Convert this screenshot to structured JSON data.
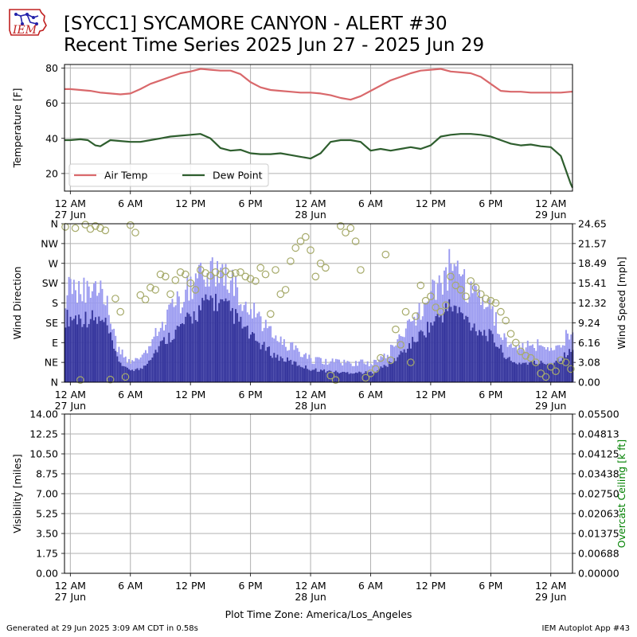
{
  "page": {
    "title": "[SYCC1] SYCAMORE CANYON - ALERT #30",
    "subtitle": "Recent Time Series 2025 Jun 27 - 2025 Jun 29",
    "logo_text": "IEM",
    "footer_left": "Generated at 29 Jun 2025 3:09 AM CDT in 0.58s",
    "footer_right": "IEM Autoplot App #43",
    "timezone_label": "Plot Time Zone: America/Los_Angeles"
  },
  "colors": {
    "air_temp": "#d9686b",
    "dew_point": "#2e5e2e",
    "wind_speed": "#32329a",
    "wind_gust": "#9a9af0",
    "wind_dir": "#a6aa6a",
    "ceiling_label": "#008000",
    "grid": "#b0b0b0"
  },
  "chart_data": [
    {
      "type": "line",
      "ylabel": "Temperature [F]",
      "ylim": [
        10,
        82
      ],
      "yticks": [
        "20",
        "40",
        "60",
        "80"
      ],
      "xlim": [
        "2025-06-26 23:25",
        "2025-06-29 02:10"
      ],
      "xticks": [
        {
          "t": "2025-06-27 00:00",
          "label": [
            "12 AM",
            "27 Jun"
          ]
        },
        {
          "t": "2025-06-27 06:00",
          "label": [
            "6 AM"
          ]
        },
        {
          "t": "2025-06-27 12:00",
          "label": [
            "12 PM"
          ]
        },
        {
          "t": "2025-06-27 18:00",
          "label": [
            "6 PM"
          ]
        },
        {
          "t": "2025-06-28 00:00",
          "label": [
            "12 AM",
            "28 Jun"
          ]
        },
        {
          "t": "2025-06-28 06:00",
          "label": [
            "6 AM"
          ]
        },
        {
          "t": "2025-06-28 12:00",
          "label": [
            "12 PM"
          ]
        },
        {
          "t": "2025-06-28 18:00",
          "label": [
            "6 PM"
          ]
        },
        {
          "t": "2025-06-29 00:00",
          "label": [
            "12 AM",
            "29 Jun"
          ]
        }
      ],
      "grid": true,
      "legend": "lower-left",
      "series": [
        {
          "name": "Air Temp",
          "x": [
            "2025-06-26 23:25",
            "2025-06-27 00:00",
            "2025-06-27 01:00",
            "2025-06-27 02:00",
            "2025-06-27 03:00",
            "2025-06-27 04:00",
            "2025-06-27 05:00",
            "2025-06-27 06:00",
            "2025-06-27 07:00",
            "2025-06-27 08:00",
            "2025-06-27 09:00",
            "2025-06-27 10:00",
            "2025-06-27 11:00",
            "2025-06-27 12:00",
            "2025-06-27 13:00",
            "2025-06-27 14:00",
            "2025-06-27 15:00",
            "2025-06-27 16:00",
            "2025-06-27 17:00",
            "2025-06-27 18:00",
            "2025-06-27 19:00",
            "2025-06-27 20:00",
            "2025-06-27 21:00",
            "2025-06-27 22:00",
            "2025-06-27 23:00",
            "2025-06-28 00:00",
            "2025-06-28 01:00",
            "2025-06-28 02:00",
            "2025-06-28 03:00",
            "2025-06-28 04:00",
            "2025-06-28 05:00",
            "2025-06-28 06:00",
            "2025-06-28 07:00",
            "2025-06-28 08:00",
            "2025-06-28 09:00",
            "2025-06-28 10:00",
            "2025-06-28 11:00",
            "2025-06-28 12:00",
            "2025-06-28 13:00",
            "2025-06-28 14:00",
            "2025-06-28 15:00",
            "2025-06-28 16:00",
            "2025-06-28 17:00",
            "2025-06-28 18:00",
            "2025-06-28 19:00",
            "2025-06-28 20:00",
            "2025-06-28 21:00",
            "2025-06-28 22:00",
            "2025-06-28 23:00",
            "2025-06-29 00:00",
            "2025-06-29 01:00",
            "2025-06-29 02:00",
            "2025-06-29 02:10"
          ],
          "y": [
            68,
            68,
            67.5,
            67,
            66,
            65.5,
            65,
            65.5,
            68,
            71,
            73,
            75,
            77,
            78,
            79.5,
            79,
            78.5,
            78.5,
            76.5,
            72,
            69,
            67.5,
            67,
            66.5,
            66,
            66,
            65.5,
            64.5,
            63,
            62,
            64,
            67,
            70,
            73,
            75,
            77,
            78.5,
            79,
            79.5,
            78,
            77.5,
            77,
            75,
            71,
            67,
            66.5,
            66.5,
            66,
            66,
            66,
            66,
            66.5,
            66.5
          ]
        },
        {
          "name": "Dew Point",
          "x": [
            "2025-06-26 23:25",
            "2025-06-27 00:00",
            "2025-06-27 01:00",
            "2025-06-27 01:45",
            "2025-06-27 02:30",
            "2025-06-27 03:00",
            "2025-06-27 04:00",
            "2025-06-27 05:00",
            "2025-06-27 06:00",
            "2025-06-27 07:00",
            "2025-06-27 08:00",
            "2025-06-27 09:00",
            "2025-06-27 10:00",
            "2025-06-27 11:00",
            "2025-06-27 12:00",
            "2025-06-27 13:00",
            "2025-06-27 14:00",
            "2025-06-27 15:00",
            "2025-06-27 16:00",
            "2025-06-27 17:00",
            "2025-06-27 18:00",
            "2025-06-27 19:00",
            "2025-06-27 20:00",
            "2025-06-27 21:00",
            "2025-06-27 22:00",
            "2025-06-27 23:00",
            "2025-06-28 00:00",
            "2025-06-28 01:00",
            "2025-06-28 02:00",
            "2025-06-28 03:00",
            "2025-06-28 04:00",
            "2025-06-28 05:00",
            "2025-06-28 06:00",
            "2025-06-28 07:00",
            "2025-06-28 08:00",
            "2025-06-28 09:00",
            "2025-06-28 10:00",
            "2025-06-28 11:00",
            "2025-06-28 12:00",
            "2025-06-28 13:00",
            "2025-06-28 14:00",
            "2025-06-28 15:00",
            "2025-06-28 16:00",
            "2025-06-28 17:00",
            "2025-06-28 18:00",
            "2025-06-28 19:00",
            "2025-06-28 20:00",
            "2025-06-28 21:00",
            "2025-06-28 22:00",
            "2025-06-28 23:00",
            "2025-06-29 00:00",
            "2025-06-29 01:00",
            "2025-06-29 02:00",
            "2025-06-29 02:10"
          ],
          "y": [
            39,
            39,
            39.5,
            39,
            36,
            35.5,
            39,
            38.5,
            38,
            38,
            39,
            40,
            41,
            41.5,
            42,
            42.5,
            40,
            34.5,
            33,
            33.5,
            31.5,
            31,
            31,
            31.5,
            30.5,
            29.5,
            28.5,
            31.5,
            38,
            39,
            39,
            38,
            33,
            34,
            33,
            34,
            35,
            34,
            36,
            41,
            42,
            42.5,
            42.5,
            42,
            41,
            39,
            37,
            36,
            36.5,
            35.5,
            35,
            30,
            14,
            12
          ]
        }
      ]
    },
    {
      "type": "bar+scatter",
      "ylabel": "Wind Direction",
      "y2label": "Wind Speed [mph]",
      "ylim": [
        0,
        360
      ],
      "yticks": [
        "N",
        "NE",
        "E",
        "SE",
        "S",
        "SW",
        "W",
        "NW",
        "N"
      ],
      "y2lim": [
        0,
        24.65
      ],
      "y2ticks": [
        "0.00",
        "3.08",
        "6.16",
        "9.24",
        "12.32",
        "15.41",
        "18.49",
        "21.57",
        "24.65"
      ],
      "grid": true,
      "speed_keys": [
        {
          "h": 0,
          "speed": 10,
          "gust": 14
        },
        {
          "h": 2,
          "speed": 10,
          "gust": 14
        },
        {
          "h": 3.5,
          "speed": 9,
          "gust": 14
        },
        {
          "h": 4.5,
          "speed": 4,
          "gust": 6
        },
        {
          "h": 5.5,
          "speed": 2,
          "gust": 3.5
        },
        {
          "h": 7,
          "speed": 2,
          "gust": 3.5
        },
        {
          "h": 9,
          "speed": 6,
          "gust": 9
        },
        {
          "h": 12,
          "speed": 10,
          "gust": 15
        },
        {
          "h": 14,
          "speed": 13,
          "gust": 18
        },
        {
          "h": 16,
          "speed": 11,
          "gust": 16
        },
        {
          "h": 18,
          "speed": 7,
          "gust": 11
        },
        {
          "h": 20.5,
          "speed": 4,
          "gust": 7
        },
        {
          "h": 24,
          "speed": 2,
          "gust": 3.5
        },
        {
          "h": 27,
          "speed": 1.5,
          "gust": 3
        },
        {
          "h": 30,
          "speed": 1.5,
          "gust": 3
        },
        {
          "h": 32,
          "speed": 3,
          "gust": 5
        },
        {
          "h": 34,
          "speed": 6,
          "gust": 9
        },
        {
          "h": 36,
          "speed": 9,
          "gust": 14
        },
        {
          "h": 38,
          "speed": 12,
          "gust": 18
        },
        {
          "h": 40,
          "speed": 9,
          "gust": 14
        },
        {
          "h": 42,
          "speed": 7,
          "gust": 11
        },
        {
          "h": 44,
          "speed": 3,
          "gust": 5
        },
        {
          "h": 46,
          "speed": 3,
          "gust": 6
        },
        {
          "h": 48,
          "speed": 3,
          "gust": 5
        },
        {
          "h": 50.2,
          "speed": 5,
          "gust": 8
        }
      ],
      "direction_points": [
        [
          -0.5,
          353
        ],
        [
          0.5,
          350
        ],
        [
          1,
          5
        ],
        [
          1.5,
          358
        ],
        [
          2,
          348
        ],
        [
          2.5,
          355
        ],
        [
          3,
          350
        ],
        [
          3.5,
          345
        ],
        [
          4,
          6
        ],
        [
          4.5,
          190
        ],
        [
          5,
          160
        ],
        [
          5.5,
          12
        ],
        [
          6,
          357
        ],
        [
          6.5,
          340
        ],
        [
          7,
          198
        ],
        [
          7.5,
          188
        ],
        [
          8,
          215
        ],
        [
          8.5,
          210
        ],
        [
          9,
          245
        ],
        [
          9.5,
          240
        ],
        [
          10,
          200
        ],
        [
          10.5,
          232
        ],
        [
          11,
          250
        ],
        [
          11.5,
          245
        ],
        [
          12,
          225
        ],
        [
          12.5,
          210
        ],
        [
          13,
          255
        ],
        [
          13.5,
          248
        ],
        [
          14,
          242
        ],
        [
          14.5,
          250
        ],
        [
          15,
          245
        ],
        [
          15.5,
          252
        ],
        [
          16,
          245
        ],
        [
          16.5,
          248
        ],
        [
          17,
          250
        ],
        [
          17.5,
          240
        ],
        [
          18,
          235
        ],
        [
          18.5,
          230
        ],
        [
          19,
          260
        ],
        [
          19.5,
          245
        ],
        [
          20,
          155
        ],
        [
          20.5,
          255
        ],
        [
          21,
          200
        ],
        [
          21.5,
          210
        ],
        [
          22,
          275
        ],
        [
          22.5,
          305
        ],
        [
          23,
          320
        ],
        [
          23.5,
          330
        ],
        [
          24,
          300
        ],
        [
          24.5,
          240
        ],
        [
          25,
          270
        ],
        [
          25.5,
          260
        ],
        [
          26,
          15
        ],
        [
          26.5,
          5
        ],
        [
          27,
          355
        ],
        [
          27.5,
          340
        ],
        [
          28,
          350
        ],
        [
          28.5,
          320
        ],
        [
          29,
          255
        ],
        [
          29.5,
          10
        ],
        [
          30,
          20
        ],
        [
          30.5,
          30
        ],
        [
          31,
          55
        ],
        [
          31.5,
          290
        ],
        [
          32,
          50
        ],
        [
          32.5,
          120
        ],
        [
          33,
          85
        ],
        [
          33.5,
          160
        ],
        [
          34,
          45
        ],
        [
          34.5,
          150
        ],
        [
          35,
          220
        ],
        [
          35.5,
          185
        ],
        [
          36,
          195
        ],
        [
          36.5,
          170
        ],
        [
          37,
          160
        ],
        [
          37.5,
          175
        ],
        [
          38,
          240
        ],
        [
          38.5,
          220
        ],
        [
          39,
          210
        ],
        [
          39.5,
          195
        ],
        [
          40,
          230
        ],
        [
          40.5,
          215
        ],
        [
          41,
          200
        ],
        [
          41.5,
          190
        ],
        [
          42,
          185
        ],
        [
          42.5,
          180
        ],
        [
          43,
          160
        ],
        [
          43.5,
          140
        ],
        [
          44,
          110
        ],
        [
          44.5,
          90
        ],
        [
          45,
          70
        ],
        [
          45.5,
          60
        ],
        [
          46,
          55
        ],
        [
          46.5,
          45
        ],
        [
          47,
          20
        ],
        [
          47.5,
          12
        ],
        [
          48,
          35
        ],
        [
          48.5,
          25
        ],
        [
          49,
          50
        ],
        [
          49.5,
          45
        ],
        [
          50,
          30
        ]
      ]
    },
    {
      "type": "line",
      "ylabel": "Visibility [miles]",
      "y2label": "Overcast Ceiling [k ft]",
      "ylim": [
        0,
        14
      ],
      "yticks": [
        "0.00",
        "1.75",
        "3.50",
        "5.25",
        "7.00",
        "8.75",
        "10.50",
        "12.25",
        "14.00"
      ],
      "y2lim": [
        0,
        0.055
      ],
      "y2ticks": [
        "0.00000",
        "0.00688",
        "0.01375",
        "0.02063",
        "0.02750",
        "0.03438",
        "0.04125",
        "0.04813",
        "0.05500"
      ],
      "grid": true,
      "series": []
    }
  ]
}
